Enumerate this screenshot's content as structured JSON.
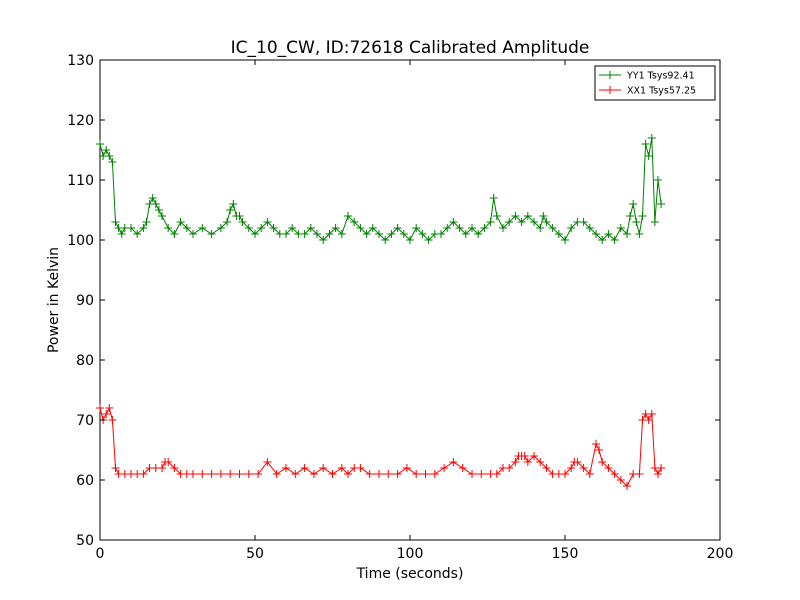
{
  "chart_data": {
    "type": "line",
    "title": "IC_10_CW, ID:72618 Calibrated Amplitude",
    "xlabel": "Time (seconds)",
    "ylabel": "Power in Kelvin",
    "xlim": [
      0,
      200
    ],
    "ylim": [
      50,
      130
    ],
    "xticks": [
      0,
      50,
      100,
      150,
      200
    ],
    "yticks": [
      50,
      60,
      70,
      80,
      90,
      100,
      110,
      120,
      130
    ],
    "grid": false,
    "legend_position": "top-right",
    "marker": "plus",
    "series": [
      {
        "name": "YY1 Tsys92.41",
        "color": "#008000",
        "x": [
          0,
          1,
          2,
          3,
          4,
          5,
          6,
          7,
          8,
          10,
          12,
          14,
          15,
          16,
          17,
          18,
          19,
          20,
          22,
          24,
          26,
          28,
          30,
          33,
          36,
          39,
          41,
          42,
          43,
          44,
          45,
          46,
          48,
          50,
          52,
          54,
          56,
          58,
          60,
          62,
          64,
          66,
          68,
          70,
          72,
          74,
          76,
          78,
          80,
          82,
          84,
          86,
          88,
          90,
          92,
          94,
          96,
          98,
          100,
          102,
          104,
          106,
          108,
          110,
          112,
          114,
          116,
          118,
          120,
          122,
          124,
          126,
          127,
          128,
          130,
          132,
          134,
          136,
          138,
          140,
          142,
          143,
          144,
          146,
          148,
          150,
          152,
          154,
          156,
          158,
          160,
          162,
          164,
          166,
          168,
          170,
          171,
          172,
          173,
          174,
          175,
          176,
          177,
          178,
          179,
          180,
          181
        ],
        "y": [
          116,
          114,
          115,
          114,
          113,
          103,
          102,
          101,
          102,
          102,
          101,
          102,
          103,
          106,
          107,
          106,
          105,
          104,
          102,
          101,
          103,
          102,
          101,
          102,
          101,
          102,
          103,
          105,
          106,
          104,
          104,
          103,
          102,
          101,
          102,
          103,
          102,
          101,
          101,
          102,
          101,
          101,
          102,
          101,
          100,
          101,
          102,
          101,
          104,
          103,
          102,
          101,
          102,
          101,
          100,
          101,
          102,
          101,
          100,
          102,
          101,
          100,
          101,
          101,
          102,
          103,
          102,
          101,
          102,
          101,
          102,
          103,
          107,
          104,
          102,
          103,
          104,
          103,
          104,
          103,
          102,
          104,
          103,
          102,
          101,
          100,
          102,
          103,
          103,
          102,
          101,
          100,
          101,
          100,
          102,
          101,
          104,
          106,
          103,
          101,
          104,
          116,
          114,
          117,
          103,
          110,
          106
        ]
      },
      {
        "name": "XX1 Tsys57.25",
        "color": "#ff0000",
        "x": [
          0,
          1,
          2,
          3,
          4,
          5,
          6,
          8,
          10,
          12,
          14,
          16,
          18,
          20,
          21,
          22,
          24,
          26,
          28,
          30,
          33,
          36,
          39,
          42,
          45,
          48,
          51,
          54,
          57,
          60,
          63,
          66,
          69,
          72,
          75,
          78,
          80,
          82,
          84,
          87,
          90,
          93,
          96,
          99,
          102,
          105,
          108,
          111,
          114,
          117,
          120,
          123,
          126,
          128,
          130,
          132,
          134,
          135,
          136,
          137,
          138,
          140,
          142,
          144,
          146,
          148,
          150,
          152,
          153,
          154,
          156,
          158,
          160,
          161,
          162,
          164,
          166,
          168,
          170,
          172,
          174,
          175,
          176,
          177,
          178,
          179,
          180,
          181
        ],
        "y": [
          72,
          70,
          71,
          72,
          70,
          62,
          61,
          61,
          61,
          61,
          61,
          62,
          62,
          62,
          63,
          63,
          62,
          61,
          61,
          61,
          61,
          61,
          61,
          61,
          61,
          61,
          61,
          63,
          61,
          62,
          61,
          62,
          61,
          62,
          61,
          62,
          61,
          62,
          62,
          61,
          61,
          61,
          61,
          62,
          61,
          61,
          61,
          62,
          63,
          62,
          61,
          61,
          61,
          61,
          62,
          62,
          63,
          64,
          64,
          64,
          63,
          64,
          63,
          62,
          61,
          61,
          61,
          62,
          63,
          63,
          62,
          61,
          66,
          65,
          63,
          62,
          61,
          60,
          59,
          61,
          61,
          70,
          71,
          70,
          71,
          62,
          61,
          62
        ]
      }
    ]
  }
}
